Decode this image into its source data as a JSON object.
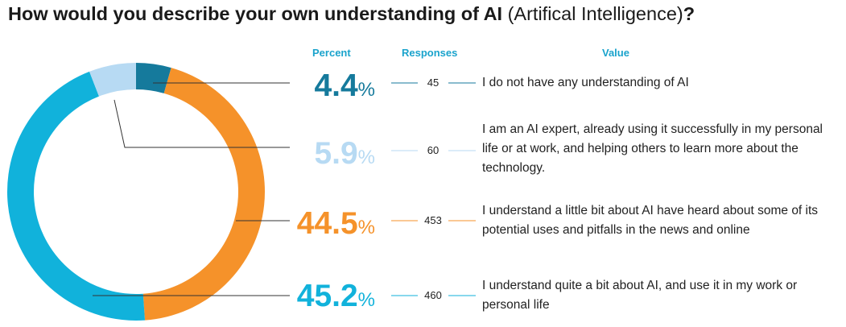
{
  "title_bold": "How would you describe your own understanding of AI",
  "title_rest": " (Artifical Intelligence)",
  "title_end": "?",
  "headers": {
    "percent": "Percent",
    "responses": "Responses",
    "value": "Value"
  },
  "chart_data": {
    "type": "pie",
    "title": "How would you describe your own understanding of AI (Artifical Intelligence)?",
    "columns": [
      "Percent",
      "Responses",
      "Value"
    ],
    "slices": [
      {
        "pct": 4.4,
        "pct_label": "4.4",
        "responses": "45",
        "label": "I do not have any understanding of AI",
        "color": "#157a9c"
      },
      {
        "pct": 44.5,
        "pct_label": "44.5",
        "responses": "453",
        "label": "I understand a little bit about AI have heard about some of its potential uses and pitfalls in the news and online",
        "color": "#f5922a"
      },
      {
        "pct": 45.2,
        "pct_label": "45.2",
        "responses": "460",
        "label": "I understand quite a bit about AI, and use it in my work or personal life",
        "color": "#11b2db"
      },
      {
        "pct": 5.9,
        "pct_label": "5.9",
        "responses": "60",
        "label": "I am an AI expert, already using it successfully in my personal life or at work, and helping others to learn more about the technology.",
        "color": "#b7daf3"
      }
    ]
  }
}
